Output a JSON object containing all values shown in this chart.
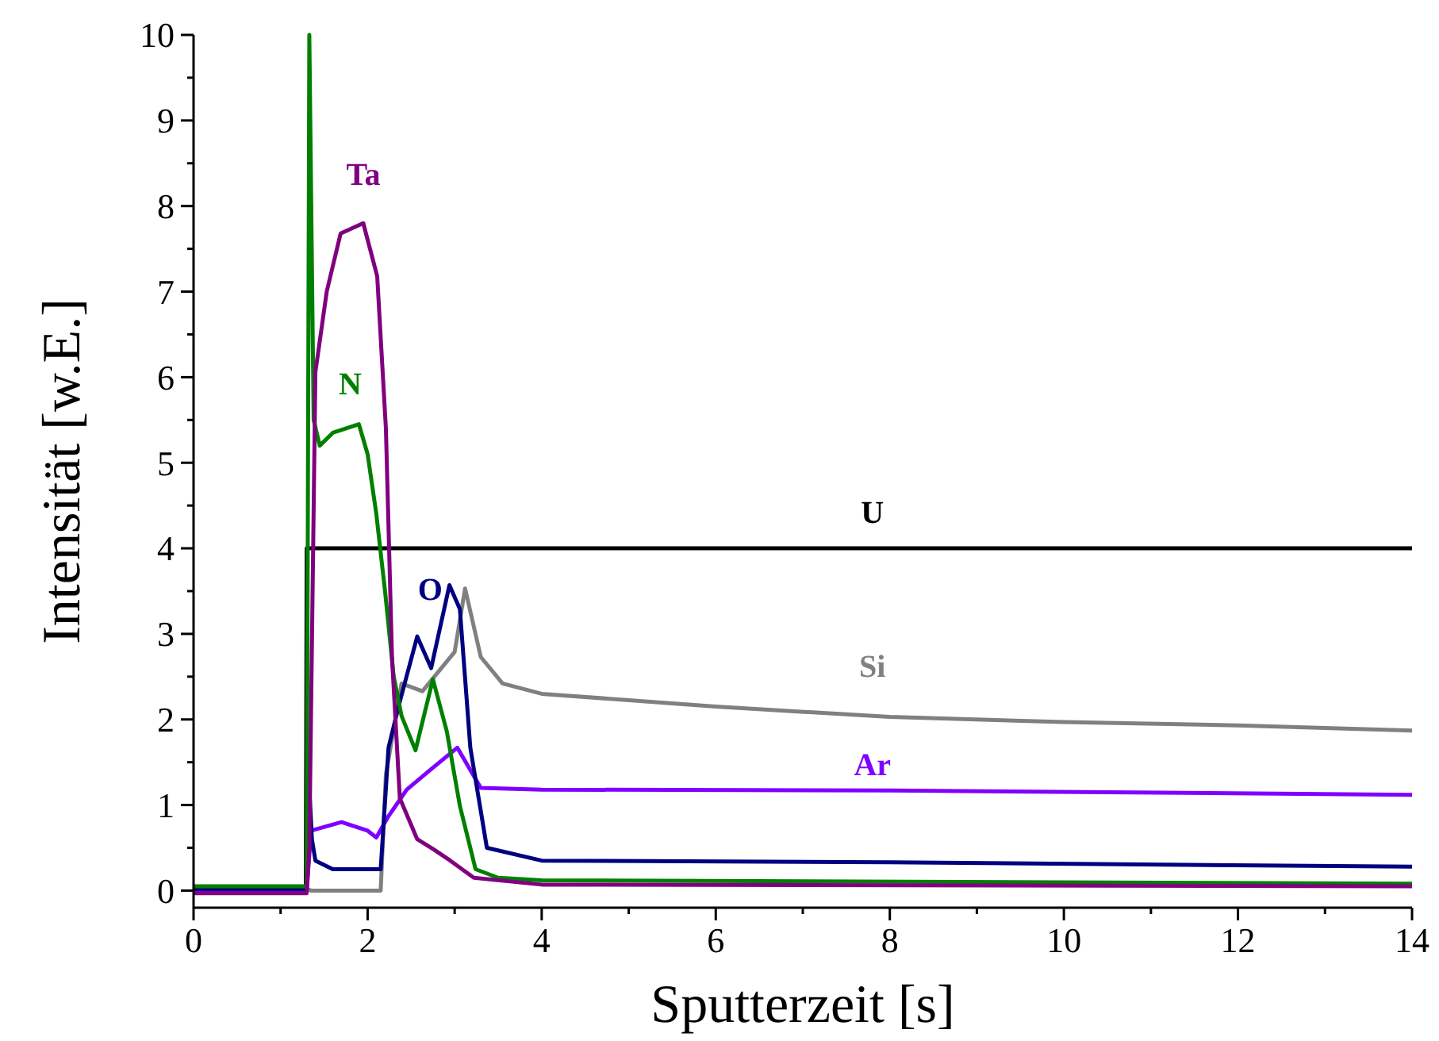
{
  "chart_data": {
    "type": "line",
    "xlabel": "Sputterzeit [s]",
    "ylabel": "Intensität [w.E.]",
    "xlim": [
      0,
      14
    ],
    "ylim": [
      -0.2,
      10
    ],
    "xticks": [
      0,
      2,
      4,
      6,
      8,
      10,
      12,
      14
    ],
    "yticks": [
      0,
      1,
      2,
      3,
      4,
      5,
      6,
      7,
      8,
      9,
      10
    ],
    "grid": false,
    "line_style": "solid",
    "series": [
      {
        "name": "U",
        "color": "#000000",
        "x": [
          0,
          1.29,
          1.3,
          14
        ],
        "values": [
          0,
          0,
          4,
          4
        ]
      },
      {
        "name": "Si",
        "color": "#808080",
        "x": [
          0,
          1.3,
          1.35,
          2.15,
          2.21,
          2.39,
          2.63,
          3.0,
          3.12,
          3.3,
          3.55,
          4,
          6,
          8,
          10,
          12,
          14
        ],
        "values": [
          0.02,
          0.02,
          0.0,
          0.0,
          1.36,
          2.42,
          2.33,
          2.79,
          3.53,
          2.73,
          2.42,
          2.3,
          2.15,
          2.03,
          1.97,
          1.93,
          1.87
        ]
      },
      {
        "name": "Ar",
        "color": "#8000ff",
        "x": [
          0,
          1.3,
          1.35,
          1.7,
          2.0,
          2.1,
          2.24,
          2.45,
          2.73,
          3.03,
          3.3,
          4,
          8,
          14
        ],
        "values": [
          0.0,
          0.0,
          0.7,
          0.8,
          0.7,
          0.62,
          0.87,
          1.18,
          1.42,
          1.67,
          1.2,
          1.18,
          1.17,
          1.12
        ]
      },
      {
        "name": "O",
        "color": "#000080",
        "x": [
          0,
          1.3,
          1.32,
          1.36,
          1.4,
          1.6,
          2.1,
          2.15,
          2.24,
          2.36,
          2.57,
          2.73,
          2.94,
          3.06,
          3.18,
          3.37,
          4,
          8,
          14
        ],
        "values": [
          0.02,
          0.02,
          1.4,
          0.6,
          0.35,
          0.25,
          0.25,
          0.25,
          1.67,
          2.17,
          2.97,
          2.6,
          3.57,
          3.29,
          1.67,
          0.5,
          0.35,
          0.33,
          0.28
        ]
      },
      {
        "name": "N",
        "color": "#008000",
        "x": [
          0,
          1.3,
          1.33,
          1.38,
          1.45,
          1.6,
          1.9,
          2.0,
          2.1,
          2.2,
          2.3,
          2.39,
          2.55,
          2.75,
          2.91,
          3.06,
          3.24,
          3.5,
          4,
          14
        ],
        "values": [
          0.05,
          0.05,
          10,
          5.5,
          5.2,
          5.35,
          5.45,
          5.1,
          4.4,
          3.5,
          2.5,
          2.04,
          1.64,
          2.47,
          1.86,
          0.99,
          0.25,
          0.15,
          0.12,
          0.08
        ]
      },
      {
        "name": "Ta",
        "color": "#800080",
        "x": [
          0,
          1.3,
          1.33,
          1.4,
          1.53,
          1.69,
          1.95,
          2.11,
          2.21,
          2.28,
          2.37,
          2.57,
          2.76,
          2.95,
          3.22,
          4,
          14
        ],
        "values": [
          -0.03,
          -0.03,
          0.5,
          6.06,
          7.0,
          7.68,
          7.8,
          7.18,
          5.4,
          2.73,
          1.08,
          0.6,
          0.48,
          0.35,
          0.15,
          0.07,
          0.05
        ]
      }
    ]
  }
}
